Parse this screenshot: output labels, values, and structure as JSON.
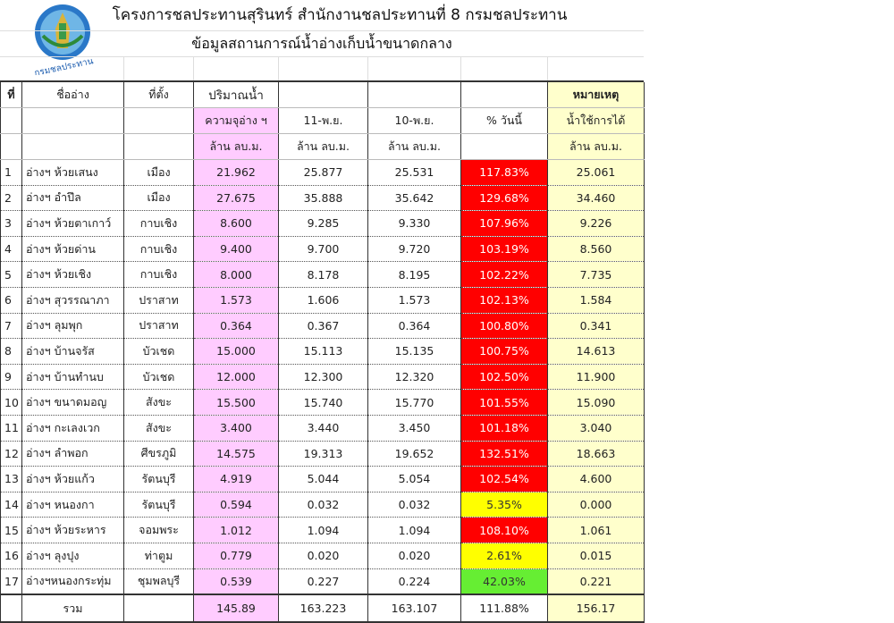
{
  "header": {
    "title": "โครงการชลประทานสุรินทร์ สำนักงานชลประทานที่ 8 กรมชลประทาน",
    "subtitle": "ข้อมูลสถานการณ์น้ำอ่างเก็บน้ำขนาดกลาง",
    "logo_text": "กรมชลประทาน"
  },
  "columns": {
    "no": "ที่",
    "name": "ชื่ออ่าง",
    "location": "ที่ตั้ง",
    "volume": "ปริมาณน้ำ",
    "capacity": "ความจุอ่าง ฯ",
    "date1": "11-พ.ย.",
    "date2": "10-พ.ย.",
    "percent": "% วันนี้",
    "remark": "หมายเหตุ",
    "usable": "น้ำใช้การได้",
    "unit": "ล้าน ลบ.ม."
  },
  "colors": {
    "red": "#ff0000",
    "yellow": "#ffff00",
    "green": "#66ee33",
    "capacity_bg": "#ffccff",
    "usable_bg": "#ffffcc"
  },
  "rows": [
    {
      "no": "1",
      "name": "อ่างฯ ห้วยเสนง",
      "location": "เมือง",
      "capacity": "21.962",
      "d1": "25.877",
      "d2": "25.531",
      "pct": "117.83%",
      "status": "red",
      "usable": "25.061"
    },
    {
      "no": "2",
      "name": "อ่างฯ อำปึล",
      "location": "เมือง",
      "capacity": "27.675",
      "d1": "35.888",
      "d2": "35.642",
      "pct": "129.68%",
      "status": "red",
      "usable": "34.460"
    },
    {
      "no": "3",
      "name": "อ่างฯ ห้วยตาเกาว์",
      "location": "กาบเชิง",
      "capacity": "8.600",
      "d1": "9.285",
      "d2": "9.330",
      "pct": "107.96%",
      "status": "red",
      "usable": "9.226"
    },
    {
      "no": "4",
      "name": "อ่างฯ ห้วยด่าน",
      "location": "กาบเชิง",
      "capacity": "9.400",
      "d1": "9.700",
      "d2": "9.720",
      "pct": "103.19%",
      "status": "red",
      "usable": "8.560"
    },
    {
      "no": "5",
      "name": "อ่างฯ ห้วยเชิง",
      "location": "กาบเชิง",
      "capacity": "8.000",
      "d1": "8.178",
      "d2": "8.195",
      "pct": "102.22%",
      "status": "red",
      "usable": "7.735"
    },
    {
      "no": "6",
      "name": "อ่างฯ สุวรรณาภา",
      "location": "ปราสาท",
      "capacity": "1.573",
      "d1": "1.606",
      "d2": "1.573",
      "pct": "102.13%",
      "status": "red",
      "usable": "1.584"
    },
    {
      "no": "7",
      "name": "อ่างฯ ลุมพุก",
      "location": "ปราสาท",
      "capacity": "0.364",
      "d1": "0.367",
      "d2": "0.364",
      "pct": "100.80%",
      "status": "red",
      "usable": "0.341"
    },
    {
      "no": "8",
      "name": "อ่างฯ บ้านจรัส",
      "location": "บัวเชด",
      "capacity": "15.000",
      "d1": "15.113",
      "d2": "15.135",
      "pct": "100.75%",
      "status": "red",
      "usable": "14.613"
    },
    {
      "no": "9",
      "name": "อ่างฯ บ้านทำนบ",
      "location": "บัวเชด",
      "capacity": "12.000",
      "d1": "12.300",
      "d2": "12.320",
      "pct": "102.50%",
      "status": "red",
      "usable": "11.900"
    },
    {
      "no": "10",
      "name": "อ่างฯ ขนาดมอญ",
      "location": "สังขะ",
      "capacity": "15.500",
      "d1": "15.740",
      "d2": "15.770",
      "pct": "101.55%",
      "status": "red",
      "usable": "15.090"
    },
    {
      "no": "11",
      "name": "อ่างฯ กะเลงเวก",
      "location": "สังขะ",
      "capacity": "3.400",
      "d1": "3.440",
      "d2": "3.450",
      "pct": "101.18%",
      "status": "red",
      "usable": "3.040"
    },
    {
      "no": "12",
      "name": "อ่างฯ ลำพอก",
      "location": "ศีขรภูมิ",
      "capacity": "14.575",
      "d1": "19.313",
      "d2": "19.652",
      "pct": "132.51%",
      "status": "red",
      "usable": "18.663"
    },
    {
      "no": "13",
      "name": "อ่างฯ ห้วยแก้ว",
      "location": "รัตนบุรี",
      "capacity": "4.919",
      "d1": "5.044",
      "d2": "5.054",
      "pct": "102.54%",
      "status": "red",
      "usable": "4.600"
    },
    {
      "no": "14",
      "name": "อ่างฯ หนองกา",
      "location": "รัตนบุรี",
      "capacity": "0.594",
      "d1": "0.032",
      "d2": "0.032",
      "pct": "5.35%",
      "status": "yellow",
      "usable": "0.000"
    },
    {
      "no": "15",
      "name": "อ่างฯ ห้วยระหาร",
      "location": "จอมพระ",
      "capacity": "1.012",
      "d1": "1.094",
      "d2": "1.094",
      "pct": "108.10%",
      "status": "red",
      "usable": "1.061"
    },
    {
      "no": "16",
      "name": "อ่างฯ ลุงปุง",
      "location": "ท่าตูม",
      "capacity": "0.779",
      "d1": "0.020",
      "d2": "0.020",
      "pct": "2.61%",
      "status": "yellow",
      "usable": "0.015"
    },
    {
      "no": "17",
      "name": "อ่างฯหนองกระทุ่ม",
      "location": "ชุมพลบุรี",
      "capacity": "0.539",
      "d1": "0.227",
      "d2": "0.224",
      "pct": "42.03%",
      "status": "green",
      "usable": "0.221"
    }
  ],
  "total": {
    "label": "รวม",
    "capacity": "145.89",
    "d1": "163.223",
    "d2": "163.107",
    "pct": "111.88%",
    "usable": "156.17"
  }
}
